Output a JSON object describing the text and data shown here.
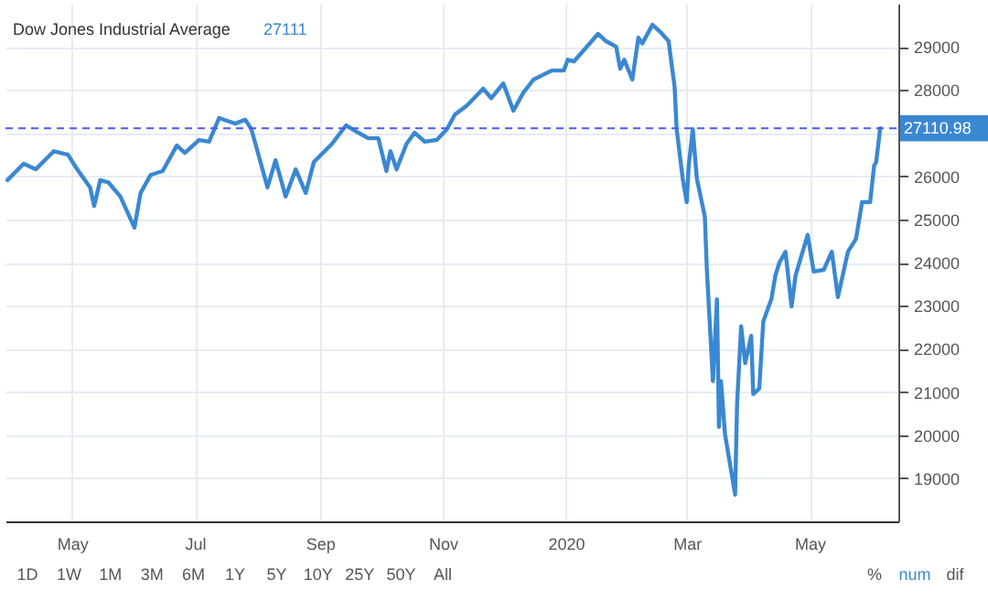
{
  "chart_data": {
    "type": "line",
    "title": "Dow Jones Industrial Average",
    "subtitle": "27111",
    "x": [
      "2019-03-30",
      "2019-04-07",
      "2019-04-13",
      "2019-04-22",
      "2019-04-29",
      "2019-05-03",
      "2019-05-10",
      "2019-05-12",
      "2019-05-15",
      "2019-05-19",
      "2019-05-25",
      "2019-06-01",
      "2019-06-04",
      "2019-06-09",
      "2019-06-15",
      "2019-06-22",
      "2019-06-26",
      "2019-07-03",
      "2019-07-08",
      "2019-07-13",
      "2019-07-21",
      "2019-07-26",
      "2019-07-29",
      "2019-08-06",
      "2019-08-10",
      "2019-08-15",
      "2019-08-20",
      "2019-08-25",
      "2019-08-29",
      "2019-09-07",
      "2019-09-14",
      "2019-09-20",
      "2019-09-25",
      "2019-09-30",
      "2019-10-04",
      "2019-10-06",
      "2019-10-09",
      "2019-10-14",
      "2019-10-18",
      "2019-10-23",
      "2019-10-29",
      "2019-11-03",
      "2019-11-07",
      "2019-11-13",
      "2019-11-21",
      "2019-11-25",
      "2019-12-01",
      "2019-12-06",
      "2019-12-11",
      "2019-12-16",
      "2019-12-25",
      "2019-12-31",
      "2020-01-02",
      "2020-01-05",
      "2020-01-09",
      "2020-01-17",
      "2020-01-21",
      "2020-01-26",
      "2020-01-28",
      "2020-01-30",
      "2020-02-03",
      "2020-02-06",
      "2020-02-08",
      "2020-02-13",
      "2020-02-17",
      "2020-02-21",
      "2020-02-24",
      "2020-02-25",
      "2020-02-28",
      "2020-03-01",
      "2020-03-02",
      "2020-03-04",
      "2020-03-06",
      "2020-03-10",
      "2020-03-11",
      "2020-03-14",
      "2020-03-16",
      "2020-03-17",
      "2020-03-18",
      "2020-03-20",
      "2020-03-25",
      "2020-03-26",
      "2020-03-28",
      "2020-03-30",
      "2020-04-02",
      "2020-04-03",
      "2020-04-06",
      "2020-04-08",
      "2020-04-12",
      "2020-04-14",
      "2020-04-16",
      "2020-04-19",
      "2020-04-22",
      "2020-04-24",
      "2020-04-30",
      "2020-05-03",
      "2020-05-08",
      "2020-05-12",
      "2020-05-15",
      "2020-05-20",
      "2020-05-24",
      "2020-05-27",
      "2020-05-31",
      "2020-06-02",
      "2020-06-03",
      "2020-06-05"
    ],
    "series": [
      {
        "color": "#3a88d2",
        "values": [
          25910,
          26290,
          26160,
          26580,
          26500,
          26200,
          25740,
          25310,
          25910,
          25860,
          25530,
          24810,
          25610,
          26030,
          26120,
          26710,
          26540,
          26840,
          26800,
          27350,
          27220,
          27310,
          27090,
          25740,
          26370,
          25530,
          26160,
          25610,
          26330,
          26750,
          27180,
          27010,
          26880,
          26880,
          26120,
          26580,
          26160,
          26750,
          27010,
          26800,
          26840,
          27090,
          27430,
          27640,
          28030,
          27810,
          28150,
          27520,
          27940,
          28240,
          28450,
          28450,
          28700,
          28660,
          28870,
          29300,
          29130,
          29000,
          28490,
          28700,
          28240,
          29210,
          29080,
          29510,
          29340,
          29130,
          28070,
          27090,
          25950,
          25400,
          26250,
          27090,
          25950,
          25060,
          23830,
          21250,
          23150,
          20190,
          21250,
          20020,
          18620,
          20740,
          22520,
          21670,
          22300,
          20950,
          21080,
          22640,
          23150,
          23700,
          24000,
          24250,
          22980,
          23700,
          24640,
          23790,
          23830,
          24250,
          23200,
          24250,
          24550,
          25400,
          25400,
          26250,
          26330,
          27111
        ]
      }
    ],
    "xlim": [
      "2019-03-29",
      "2020-06-14"
    ],
    "ylim": [
      18000,
      30000
    ],
    "xticks": [
      {
        "value": "2019-05-01",
        "label": "May"
      },
      {
        "value": "2019-07-01",
        "label": "Jul"
      },
      {
        "value": "2019-09-01",
        "label": "Sep"
      },
      {
        "value": "2019-11-01",
        "label": "Nov"
      },
      {
        "value": "2020-01-01",
        "label": "2020"
      },
      {
        "value": "2020-03-01",
        "label": "Mar"
      },
      {
        "value": "2020-05-01",
        "label": "May"
      }
    ],
    "yticks": [
      19000,
      20000,
      21000,
      22000,
      23000,
      24000,
      25000,
      26000,
      {
        "value": 27000,
        "label": null
      },
      28000,
      29000
    ],
    "grid": true,
    "ref_lines": [
      {
        "axis": "y",
        "value": 27110.98,
        "label": "27110.98",
        "color": "#4a5cf0",
        "line_style": "dashed"
      }
    ],
    "annotations": [
      "1D",
      "1W",
      "1M",
      "3M",
      "6M",
      "1Y",
      "5Y",
      "10Y",
      "25Y",
      "50Y",
      "All",
      "%",
      "num",
      "dif"
    ]
  }
}
